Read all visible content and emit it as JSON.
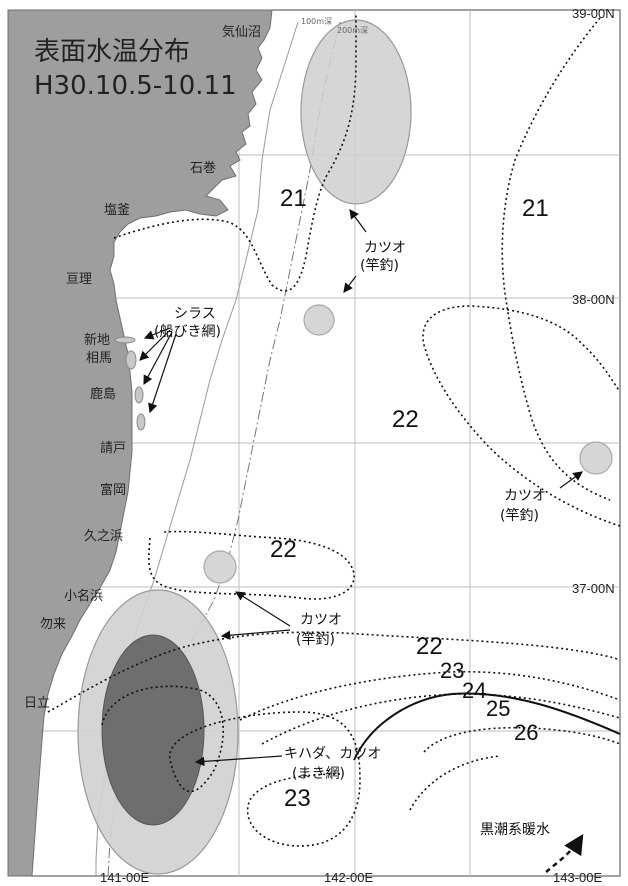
{
  "title": {
    "line1": "表面水温分布",
    "line2": "H30.10.5-10.11"
  },
  "coordinates": {
    "lat_39": "39-00N",
    "lat_38": "38-00N",
    "lat_37": "37-00N",
    "lon_141": "141-00E",
    "lon_142": "142-00E",
    "lon_143": "143-00E"
  },
  "depth_labels": {
    "d100": "100m深",
    "d200": "200m深"
  },
  "places": {
    "kesennuma": "気仙沼",
    "ishinomaki": "石巻",
    "shiogama": "塩釜",
    "watari": "亘理",
    "shinchi": "新地",
    "soma": "相馬",
    "kashima": "鹿島",
    "ukedo": "請戸",
    "tomioka": "富岡",
    "hisanohama": "久之浜",
    "onahama": "小名浜",
    "nakoso": "勿来",
    "hitachi": "日立"
  },
  "isotherms": {
    "t21a": "21",
    "t21b": "21",
    "t22a": "22",
    "t22b": "22",
    "t22c": "22",
    "t23a": "23",
    "t23b": "23",
    "t24": "24",
    "t25": "25",
    "t26": "26"
  },
  "fishing_notes": {
    "katsuo_north_1": "カツオ",
    "katsuo_north_2": "(竿釣)",
    "shirasu_1": "シラス",
    "shirasu_2": "(船びき網)",
    "katsuo_east_1": "カツオ",
    "katsuo_east_2": "(竿釣)",
    "katsuo_mid_1": "カツオ",
    "katsuo_mid_2": "(竿釣)",
    "kihada_1": "キハダ、カツオ",
    "kihada_2": "(まき網)",
    "kuroshio": "黒潮系暖水"
  }
}
